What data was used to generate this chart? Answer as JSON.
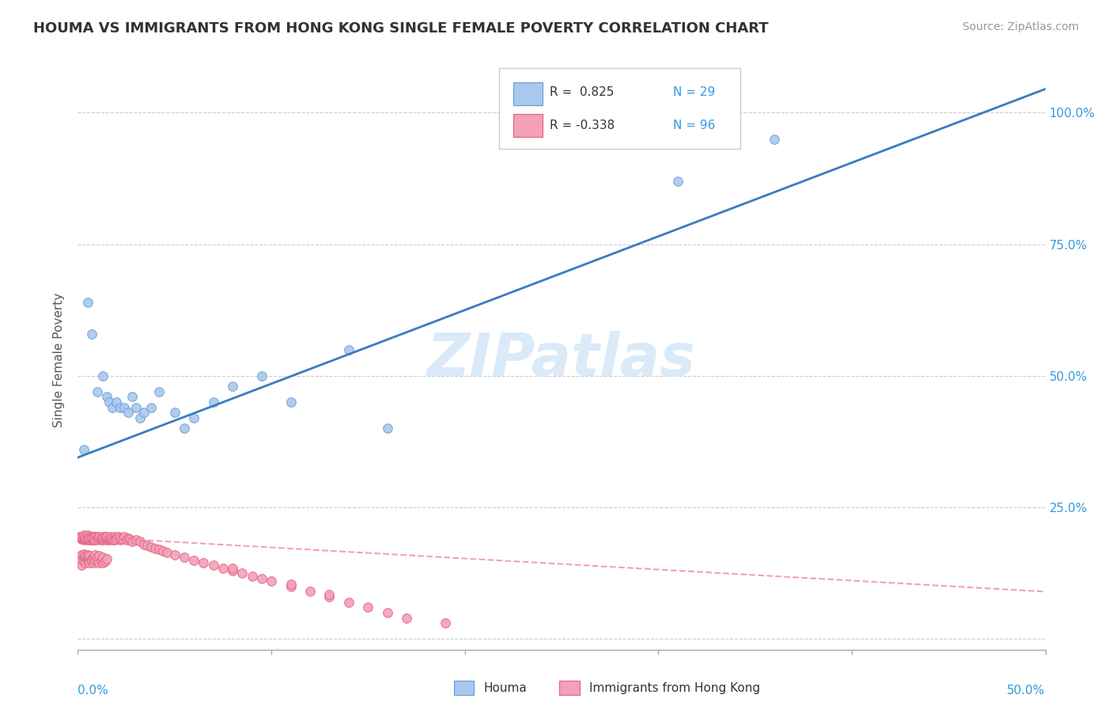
{
  "title": "HOUMA VS IMMIGRANTS FROM HONG KONG SINGLE FEMALE POVERTY CORRELATION CHART",
  "source": "Source: ZipAtlas.com",
  "ylabel": "Single Female Poverty",
  "xlim": [
    0.0,
    0.5
  ],
  "ylim": [
    -0.02,
    1.08
  ],
  "houma_color": "#a8c8f0",
  "hk_color": "#f4a0b8",
  "houma_edge": "#6699cc",
  "hk_edge": "#e06080",
  "line_blue": "#3a7bbf",
  "line_pink": "#f080a0",
  "watermark_color": "#daeaf8",
  "background_color": "#ffffff",
  "blue_line_x": [
    0.0,
    0.5
  ],
  "blue_line_y": [
    0.345,
    1.045
  ],
  "pink_line_x": [
    0.0,
    0.5
  ],
  "pink_line_y": [
    0.195,
    0.09
  ],
  "houma_points_x": [
    0.003,
    0.005,
    0.007,
    0.01,
    0.013,
    0.015,
    0.016,
    0.018,
    0.02,
    0.022,
    0.024,
    0.026,
    0.028,
    0.03,
    0.032,
    0.034,
    0.038,
    0.042,
    0.05,
    0.055,
    0.06,
    0.07,
    0.08,
    0.095,
    0.11,
    0.14,
    0.16,
    0.31,
    0.36
  ],
  "houma_points_y": [
    0.36,
    0.64,
    0.58,
    0.47,
    0.5,
    0.46,
    0.45,
    0.44,
    0.45,
    0.44,
    0.44,
    0.43,
    0.46,
    0.44,
    0.42,
    0.43,
    0.44,
    0.47,
    0.43,
    0.4,
    0.42,
    0.45,
    0.48,
    0.5,
    0.45,
    0.55,
    0.4,
    0.87,
    0.95
  ],
  "hk_points_x": [
    0.001,
    0.002,
    0.002,
    0.002,
    0.003,
    0.003,
    0.003,
    0.003,
    0.004,
    0.004,
    0.004,
    0.005,
    0.005,
    0.005,
    0.005,
    0.005,
    0.006,
    0.006,
    0.006,
    0.006,
    0.007,
    0.007,
    0.007,
    0.007,
    0.008,
    0.008,
    0.008,
    0.009,
    0.009,
    0.009,
    0.01,
    0.01,
    0.01,
    0.011,
    0.011,
    0.011,
    0.012,
    0.012,
    0.013,
    0.013,
    0.013,
    0.014,
    0.014,
    0.015,
    0.015,
    0.015,
    0.016,
    0.016,
    0.017,
    0.017,
    0.018,
    0.018,
    0.019,
    0.019,
    0.02,
    0.02,
    0.021,
    0.022,
    0.022,
    0.023,
    0.024,
    0.025,
    0.026,
    0.027,
    0.028,
    0.03,
    0.032,
    0.034,
    0.036,
    0.038,
    0.04,
    0.042,
    0.044,
    0.046,
    0.05,
    0.055,
    0.06,
    0.065,
    0.07,
    0.075,
    0.08,
    0.085,
    0.09,
    0.095,
    0.1,
    0.11,
    0.12,
    0.13,
    0.14,
    0.15,
    0.16,
    0.17,
    0.19,
    0.13,
    0.11,
    0.08
  ],
  "hk_points_y": [
    0.195,
    0.19,
    0.192,
    0.195,
    0.188,
    0.192,
    0.195,
    0.198,
    0.19,
    0.195,
    0.192,
    0.188,
    0.192,
    0.195,
    0.198,
    0.19,
    0.192,
    0.195,
    0.188,
    0.192,
    0.19,
    0.195,
    0.188,
    0.192,
    0.195,
    0.188,
    0.192,
    0.19,
    0.195,
    0.188,
    0.192,
    0.195,
    0.188,
    0.192,
    0.19,
    0.195,
    0.188,
    0.192,
    0.195,
    0.188,
    0.192,
    0.19,
    0.195,
    0.188,
    0.192,
    0.195,
    0.188,
    0.192,
    0.19,
    0.195,
    0.188,
    0.192,
    0.195,
    0.188,
    0.192,
    0.19,
    0.195,
    0.188,
    0.192,
    0.19,
    0.195,
    0.188,
    0.192,
    0.19,
    0.185,
    0.188,
    0.185,
    0.18,
    0.178,
    0.175,
    0.172,
    0.17,
    0.168,
    0.165,
    0.16,
    0.155,
    0.15,
    0.145,
    0.14,
    0.135,
    0.13,
    0.125,
    0.12,
    0.115,
    0.11,
    0.1,
    0.09,
    0.08,
    0.07,
    0.06,
    0.05,
    0.04,
    0.03,
    0.085,
    0.105,
    0.135
  ],
  "hk_extra_x": [
    0.001,
    0.002,
    0.002,
    0.003,
    0.003,
    0.003,
    0.004,
    0.004,
    0.004,
    0.005,
    0.005,
    0.005,
    0.006,
    0.006,
    0.006,
    0.007,
    0.007,
    0.008,
    0.008,
    0.009,
    0.009,
    0.01,
    0.01,
    0.011,
    0.011,
    0.012,
    0.013,
    0.013,
    0.014,
    0.015
  ],
  "hk_extra_y": [
    0.15,
    0.16,
    0.14,
    0.155,
    0.148,
    0.162,
    0.152,
    0.145,
    0.158,
    0.148,
    0.155,
    0.16,
    0.15,
    0.145,
    0.158,
    0.152,
    0.148,
    0.155,
    0.145,
    0.15,
    0.16,
    0.148,
    0.155,
    0.145,
    0.158,
    0.15,
    0.145,
    0.155,
    0.148,
    0.152
  ]
}
